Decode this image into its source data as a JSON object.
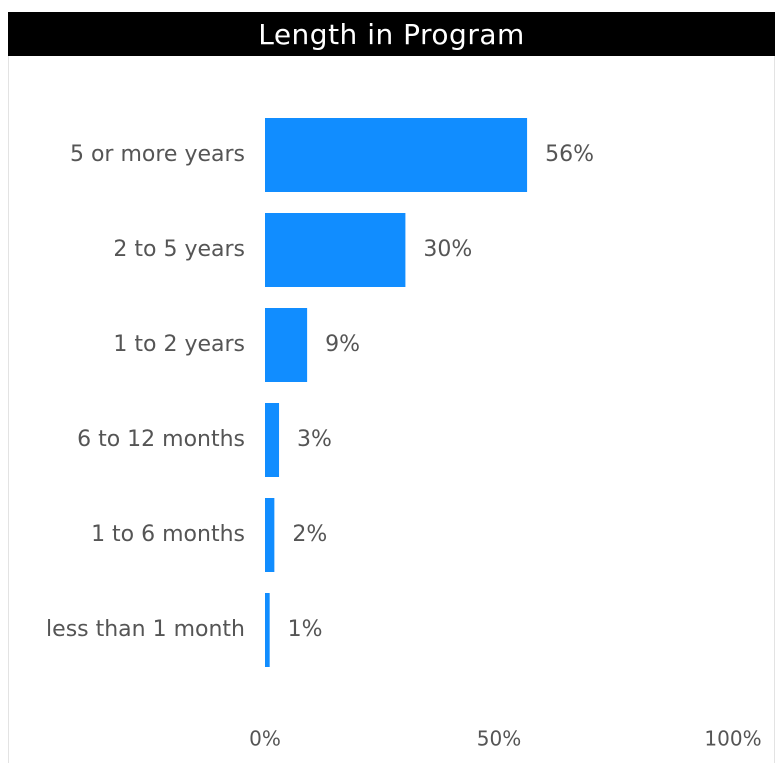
{
  "chart_data": {
    "type": "bar",
    "orientation": "horizontal",
    "title": "Length in Program",
    "categories": [
      "5 or more years",
      "2 to 5 years",
      "1 to 2 years",
      "6 to 12 months",
      "1 to 6 months",
      "less than 1 month"
    ],
    "values": [
      56,
      30,
      9,
      3,
      2,
      1
    ],
    "value_labels": [
      "56%",
      "30%",
      "9%",
      "3%",
      "2%",
      "1%"
    ],
    "xlim": [
      0,
      100
    ],
    "x_ticks": [
      0,
      50,
      100
    ],
    "x_tick_labels": [
      "0%",
      "50%",
      "100%"
    ],
    "xlabel": "",
    "ylabel": "",
    "grid": false,
    "legend": "none",
    "bar_color": "#118dff",
    "title_bg_color": "#000000",
    "title_text_color": "#ffffff"
  }
}
